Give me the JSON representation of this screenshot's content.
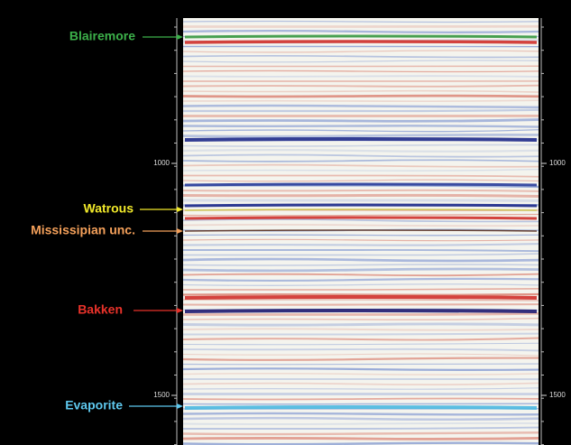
{
  "horizons": [
    {
      "label": "Blairemore",
      "color": "#3cb04a"
    },
    {
      "label": "Watrous",
      "color": "#f2ea2a"
    },
    {
      "label": "Mississipian unc.",
      "color": "#f4a05a"
    },
    {
      "label": "Bakken",
      "color": "#e8322a"
    },
    {
      "label": "Evaporite",
      "color": "#5ec8ee"
    }
  ],
  "left_ticks": [
    1000,
    1500
  ],
  "right_ticks": [
    1000,
    1500
  ]
}
